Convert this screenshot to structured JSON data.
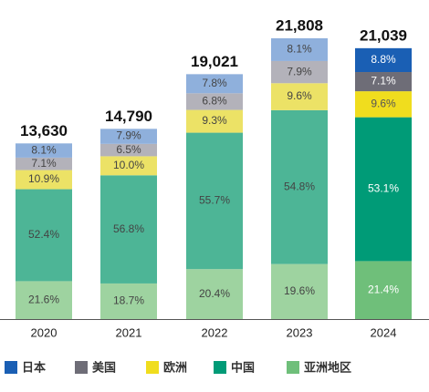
{
  "chart_data": {
    "type": "stacked-bar",
    "categories": [
      "2020",
      "2021",
      "2022",
      "2023",
      "2024"
    ],
    "totals": [
      {
        "value": 13630,
        "label": "13,630"
      },
      {
        "value": 14790,
        "label": "14,790"
      },
      {
        "value": 19021,
        "label": "19,021"
      },
      {
        "value": 21808,
        "label": "21,808"
      },
      {
        "value": 21039,
        "label": "21,039"
      }
    ],
    "series": [
      {
        "name": "亚洲地区",
        "color": "#6fbf7a",
        "colors": [
          "#9ed3a0",
          "#9ed3a0",
          "#9ed3a0",
          "#9ed3a0",
          "#6fbf7a"
        ],
        "label_colors": [
          "#444",
          "#444",
          "#444",
          "#444",
          "#fff"
        ],
        "values": [
          21.6,
          18.7,
          20.4,
          19.6,
          21.4
        ],
        "value_labels": [
          "21.6%",
          "18.7%",
          "20.4%",
          "19.6%",
          "21.4%"
        ]
      },
      {
        "name": "中国",
        "color": "#009b77",
        "colors": [
          "#4db596",
          "#4db596",
          "#4db596",
          "#4db596",
          "#009b77"
        ],
        "label_colors": [
          "#444",
          "#444",
          "#444",
          "#444",
          "#fff"
        ],
        "values": [
          52.4,
          56.8,
          55.7,
          54.8,
          53.1
        ],
        "value_labels": [
          "52.4%",
          "56.8%",
          "55.7%",
          "54.8%",
          "53.1%"
        ]
      },
      {
        "name": "欧洲",
        "color": "#f0dd1e",
        "colors": [
          "#ece266",
          "#ece266",
          "#ece266",
          "#ece266",
          "#f0dd1e"
        ],
        "label_colors": [
          "#444",
          "#444",
          "#444",
          "#444",
          "#555"
        ],
        "values": [
          10.9,
          10.0,
          9.3,
          9.6,
          9.6
        ],
        "value_labels": [
          "10.9%",
          "10.0%",
          "9.3%",
          "9.6%",
          "9.6%"
        ]
      },
      {
        "name": "美国",
        "color": "#6e6d77",
        "colors": [
          "#b3b2ba",
          "#b3b2ba",
          "#b3b2ba",
          "#b3b2ba",
          "#6e6d77"
        ],
        "label_colors": [
          "#444",
          "#444",
          "#444",
          "#444",
          "#fff"
        ],
        "values": [
          7.1,
          6.5,
          6.8,
          7.9,
          7.1
        ],
        "value_labels": [
          "7.1%",
          "6.5%",
          "6.8%",
          "7.9%",
          "7.1%"
        ]
      },
      {
        "name": "日本",
        "color": "#1a5fb4",
        "colors": [
          "#8fb0dc",
          "#8fb0dc",
          "#8fb0dc",
          "#8fb0dc",
          "#1a5fb4"
        ],
        "label_colors": [
          "#444",
          "#444",
          "#444",
          "#444",
          "#fff"
        ],
        "values": [
          8.1,
          7.9,
          7.8,
          8.1,
          8.8
        ],
        "value_labels": [
          "8.1%",
          "7.9%",
          "7.8%",
          "8.1%",
          "8.8%"
        ]
      }
    ]
  }
}
